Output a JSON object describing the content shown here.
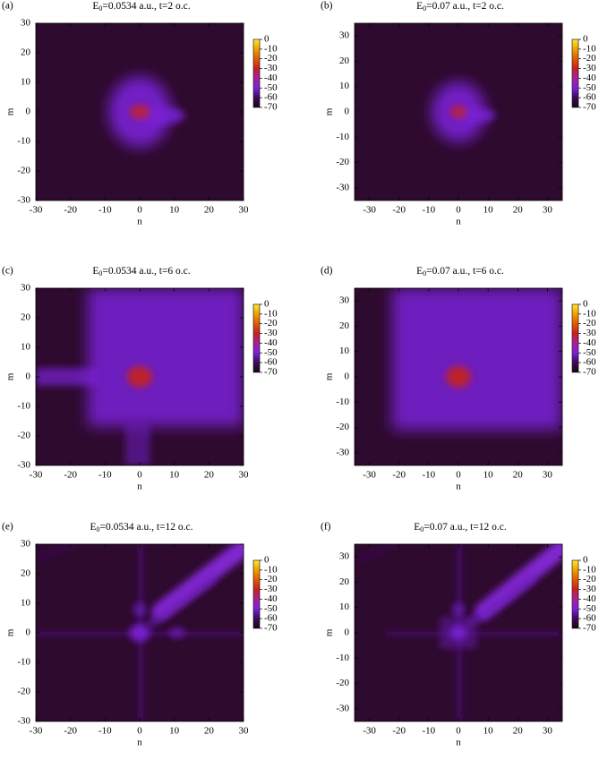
{
  "chart_data": [
    {
      "type": "heatmap",
      "label": "(a)",
      "title": {
        "main": "E",
        "sub": "0",
        "rest": "=0.0534 a.u., t=2 o.c."
      },
      "x_label": "n",
      "y_label": "m",
      "xlim": [
        -30,
        30
      ],
      "xticks": [
        -30,
        -20,
        -10,
        0,
        10,
        20,
        30
      ],
      "ylim": [
        -30,
        30
      ],
      "yticks": [
        -30,
        -20,
        -10,
        0,
        10,
        20,
        30
      ],
      "colorbar": {
        "lim": [
          -70,
          0
        ],
        "ticks": [
          0,
          -10,
          -20,
          -30,
          -40,
          -50,
          -60,
          -70
        ],
        "colormap": [
          "#1e0418",
          "#3c0a5a",
          "#7a22d8",
          "#a81f9e",
          "#c8201f",
          "#e05a05",
          "#f0a000",
          "#ffe830"
        ]
      }
    },
    {
      "type": "heatmap",
      "label": "(b)",
      "title": {
        "main": "E",
        "sub": "0",
        "rest": "=0.07 a.u., t=2 o.c."
      },
      "x_label": "n",
      "y_label": "m",
      "xlim": [
        -35,
        35
      ],
      "xticks": [
        -30,
        -20,
        -10,
        0,
        10,
        20,
        30
      ],
      "ylim": [
        -35,
        35
      ],
      "yticks": [
        -30,
        -20,
        -10,
        0,
        10,
        20,
        30
      ],
      "colorbar": {
        "lim": [
          -70,
          0
        ],
        "ticks": [
          0,
          -10,
          -20,
          -30,
          -40,
          -50,
          -60,
          -70
        ],
        "colormap": [
          "#1e0418",
          "#3c0a5a",
          "#7a22d8",
          "#a81f9e",
          "#c8201f",
          "#e05a05",
          "#f0a000",
          "#ffe830"
        ]
      }
    },
    {
      "type": "heatmap",
      "label": "(c)",
      "title": {
        "main": "E",
        "sub": "0",
        "rest": "=0.0534 a.u., t=6 o.c."
      },
      "x_label": "n",
      "y_label": "m",
      "xlim": [
        -30,
        30
      ],
      "xticks": [
        -30,
        -20,
        -10,
        0,
        10,
        20,
        30
      ],
      "ylim": [
        -30,
        30
      ],
      "yticks": [
        -30,
        -20,
        -10,
        0,
        10,
        20,
        30
      ],
      "colorbar": {
        "lim": [
          -70,
          0
        ],
        "ticks": [
          0,
          -10,
          -20,
          -30,
          -40,
          -50,
          -60,
          -70
        ],
        "colormap": [
          "#1e0418",
          "#3c0a5a",
          "#7a22d8",
          "#a81f9e",
          "#c8201f",
          "#e05a05",
          "#f0a000",
          "#ffe830"
        ]
      }
    },
    {
      "type": "heatmap",
      "label": "(d)",
      "title": {
        "main": "E",
        "sub": "0",
        "rest": "=0.07 a.u., t=6 o.c."
      },
      "x_label": "n",
      "y_label": "m",
      "xlim": [
        -35,
        35
      ],
      "xticks": [
        -30,
        -20,
        -10,
        0,
        10,
        20,
        30
      ],
      "ylim": [
        -35,
        35
      ],
      "yticks": [
        -30,
        -20,
        -10,
        0,
        10,
        20,
        30
      ],
      "colorbar": {
        "lim": [
          -70,
          0
        ],
        "ticks": [
          0,
          -10,
          -20,
          -30,
          -40,
          -50,
          -60,
          -70
        ],
        "colormap": [
          "#1e0418",
          "#3c0a5a",
          "#7a22d8",
          "#a81f9e",
          "#c8201f",
          "#e05a05",
          "#f0a000",
          "#ffe830"
        ]
      }
    },
    {
      "type": "heatmap",
      "label": "(e)",
      "title": {
        "main": "E",
        "sub": "0",
        "rest": "=0.0534 a.u., t=12 o.c."
      },
      "x_label": "n",
      "y_label": "m",
      "xlim": [
        -30,
        30
      ],
      "xticks": [
        -30,
        -20,
        -10,
        0,
        10,
        20,
        30
      ],
      "ylim": [
        -30,
        30
      ],
      "yticks": [
        -30,
        -20,
        -10,
        0,
        10,
        20,
        30
      ],
      "colorbar": {
        "lim": [
          -70,
          0
        ],
        "ticks": [
          0,
          -10,
          -20,
          -30,
          -40,
          -50,
          -60,
          -70
        ],
        "colormap": [
          "#1e0418",
          "#3c0a5a",
          "#7a22d8",
          "#a81f9e",
          "#c8201f",
          "#e05a05",
          "#f0a000",
          "#ffe830"
        ]
      }
    },
    {
      "type": "heatmap",
      "label": "(f)",
      "title": {
        "main": "E",
        "sub": "0",
        "rest": "=0.07 a.u., t=12 o.c."
      },
      "x_label": "n",
      "y_label": "m",
      "xlim": [
        -35,
        35
      ],
      "xticks": [
        -30,
        -20,
        -10,
        0,
        10,
        20,
        30
      ],
      "ylim": [
        -35,
        35
      ],
      "yticks": [
        -30,
        -20,
        -10,
        0,
        10,
        20,
        30
      ],
      "colorbar": {
        "lim": [
          -70,
          0
        ],
        "ticks": [
          0,
          -10,
          -20,
          -30,
          -40,
          -50,
          -60,
          -70
        ],
        "colormap": [
          "#1e0418",
          "#3c0a5a",
          "#7a22d8",
          "#a81f9e",
          "#c8201f",
          "#e05a05",
          "#f0a000",
          "#ffe830"
        ]
      }
    }
  ]
}
